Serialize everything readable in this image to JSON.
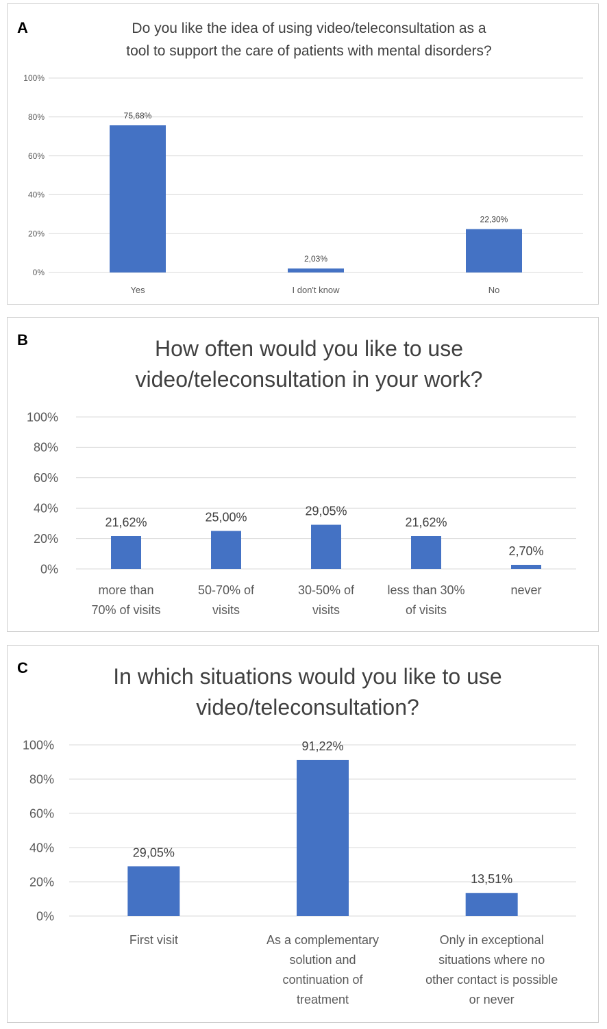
{
  "colors": {
    "bar": "#4472C4",
    "grid": "#d9d9d9",
    "border": "#cfcfcf"
  },
  "chart_data": [
    {
      "panel": "A",
      "type": "bar",
      "title": [
        "Do you like the idea of using video/teleconsultation as a",
        "tool to support the care of patients with mental disorders?"
      ],
      "categories": [
        [
          "Yes"
        ],
        [
          "I don't know"
        ],
        [
          "No"
        ]
      ],
      "values": [
        75.68,
        2.03,
        22.3
      ],
      "data_labels": [
        "75,68%",
        "2,03%",
        "22,30%"
      ],
      "yticks": [
        "0%",
        "20%",
        "40%",
        "60%",
        "80%",
        "100%"
      ],
      "ylim": [
        0,
        100
      ],
      "xlabel": "",
      "ylabel": "",
      "grid": true
    },
    {
      "panel": "B",
      "type": "bar",
      "title": [
        "How often would you like to use",
        "video/teleconsultation in your work?"
      ],
      "categories": [
        [
          "more than",
          "70% of visits"
        ],
        [
          "50-70% of",
          "visits"
        ],
        [
          "30-50% of",
          "visits"
        ],
        [
          "less than 30%",
          "of visits"
        ],
        [
          "never"
        ]
      ],
      "values": [
        21.62,
        25.0,
        29.05,
        21.62,
        2.7
      ],
      "data_labels": [
        "21,62%",
        "25,00%",
        "29,05%",
        "21,62%",
        "2,70%"
      ],
      "yticks": [
        "0%",
        "20%",
        "40%",
        "60%",
        "80%",
        "100%"
      ],
      "ylim": [
        0,
        100
      ],
      "xlabel": "",
      "ylabel": "",
      "grid": true
    },
    {
      "panel": "C",
      "type": "bar",
      "title": [
        "In which situations would you like to use",
        "video/teleconsultation?"
      ],
      "categories": [
        [
          "First visit"
        ],
        [
          "As a complementary",
          "solution and",
          "continuation of",
          "treatment"
        ],
        [
          "Only in exceptional",
          "situations where no",
          "other contact is possible",
          "or never"
        ]
      ],
      "values": [
        29.05,
        91.22,
        13.51
      ],
      "data_labels": [
        "29,05%",
        "91,22%",
        "13,51%"
      ],
      "yticks": [
        "0%",
        "20%",
        "40%",
        "60%",
        "80%",
        "100%"
      ],
      "ylim": [
        0,
        100
      ],
      "xlabel": "",
      "ylabel": "",
      "grid": true
    }
  ]
}
